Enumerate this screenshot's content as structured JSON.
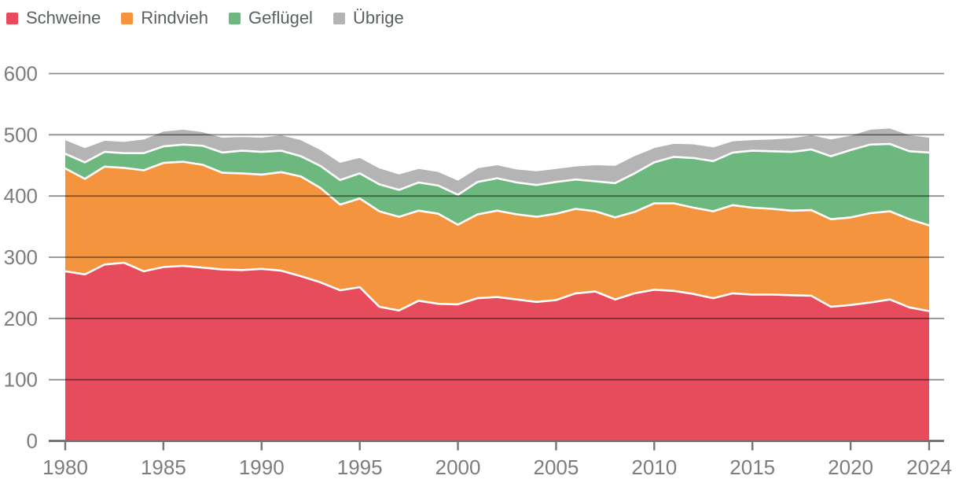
{
  "chart_data": {
    "type": "area",
    "stacked": true,
    "title": "",
    "xlabel": "",
    "ylabel": "",
    "x": [
      1980,
      1981,
      1982,
      1983,
      1984,
      1985,
      1986,
      1987,
      1988,
      1989,
      1990,
      1991,
      1992,
      1993,
      1994,
      1995,
      1996,
      1997,
      1998,
      1999,
      2000,
      2001,
      2002,
      2003,
      2004,
      2005,
      2006,
      2007,
      2008,
      2009,
      2010,
      2011,
      2012,
      2013,
      2014,
      2015,
      2016,
      2017,
      2018,
      2019,
      2020,
      2021,
      2022,
      2023,
      2024
    ],
    "series": [
      {
        "name": "Schweine",
        "color": "#e74c5c",
        "values": [
          277,
          272,
          288,
          291,
          277,
          284,
          286,
          283,
          280,
          279,
          281,
          278,
          269,
          259,
          246,
          251,
          219,
          213,
          229,
          224,
          223,
          233,
          235,
          231,
          227,
          230,
          241,
          244,
          231,
          241,
          247,
          245,
          240,
          233,
          241,
          239,
          239,
          238,
          237,
          219,
          222,
          226,
          231,
          218,
          212
        ]
      },
      {
        "name": "Rindvieh",
        "color": "#f5943f",
        "values": [
          168,
          156,
          160,
          155,
          165,
          170,
          170,
          168,
          158,
          158,
          154,
          161,
          163,
          154,
          140,
          145,
          156,
          153,
          147,
          147,
          130,
          137,
          141,
          139,
          139,
          141,
          138,
          131,
          134,
          133,
          141,
          143,
          141,
          142,
          144,
          142,
          140,
          138,
          140,
          143,
          143,
          146,
          144,
          144,
          140
        ]
      },
      {
        "name": "Geflügel",
        "color": "#6cb87e",
        "values": [
          24,
          27,
          24,
          24,
          28,
          27,
          28,
          31,
          33,
          37,
          37,
          35,
          33,
          36,
          40,
          41,
          44,
          44,
          46,
          46,
          49,
          53,
          53,
          52,
          52,
          52,
          48,
          49,
          56,
          63,
          67,
          76,
          81,
          82,
          86,
          93,
          94,
          96,
          99,
          103,
          110,
          112,
          110,
          111,
          119
        ]
      },
      {
        "name": "Übrige",
        "color": "#b4b4b4",
        "values": [
          24,
          25,
          20,
          20,
          24,
          26,
          26,
          24,
          26,
          24,
          25,
          27,
          28,
          28,
          30,
          27,
          28,
          27,
          24,
          24,
          25,
          24,
          23,
          23,
          24,
          23,
          23,
          28,
          30,
          30,
          25,
          23,
          24,
          24,
          20,
          19,
          21,
          24,
          25,
          29,
          25,
          26,
          27,
          28,
          26
        ]
      }
    ],
    "ylim": [
      0,
      600
    ],
    "yticks": [
      0,
      100,
      200,
      300,
      400,
      500,
      600
    ],
    "xticks": [
      1980,
      1985,
      1990,
      1995,
      2000,
      2005,
      2010,
      2015,
      2020,
      2024
    ],
    "grid": true,
    "legend_position": "top-left",
    "boundary_stroke_color": "#ffffff"
  },
  "colors": {
    "axis_label": "#7d7d7d",
    "gridline": "rgba(0,0,0,0.44)",
    "zero_axis": "#757575",
    "legend_text": "#5a5f62"
  }
}
